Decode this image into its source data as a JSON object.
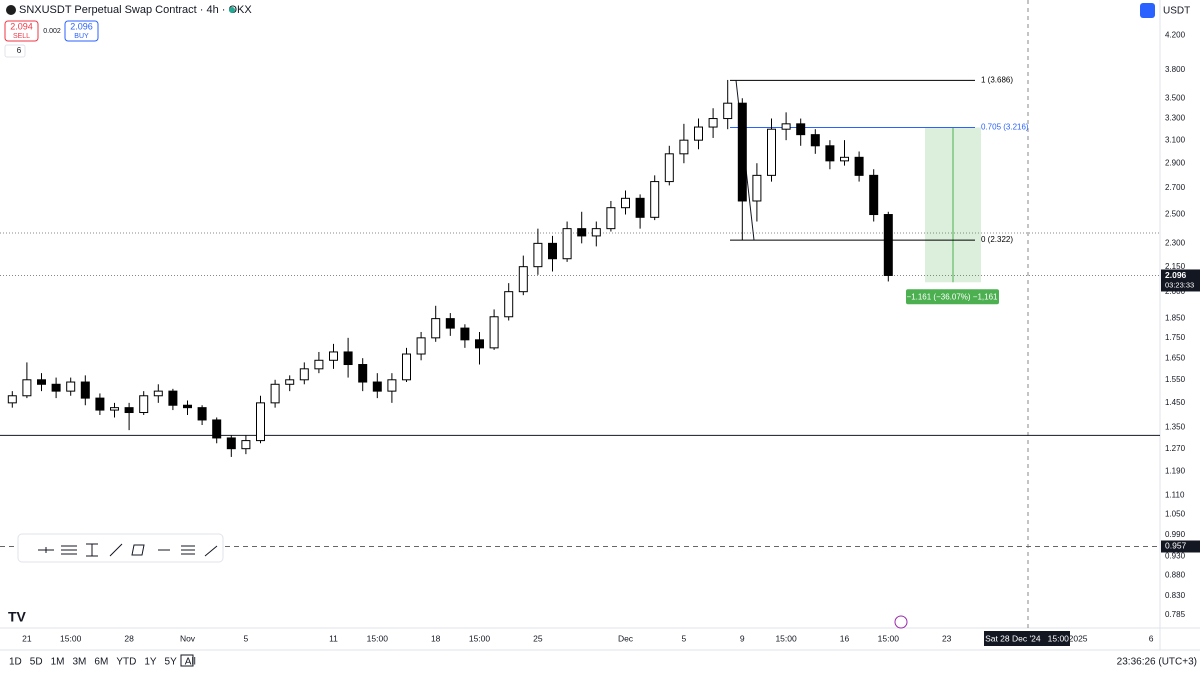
{
  "chart_data": {
    "type": "candlestick",
    "title": "SNXUSDT Perpetual Swap Contract · 4h · OKX",
    "categories": [
      null,
      "21",
      null,
      null,
      "15:00",
      null,
      null,
      null,
      "28",
      null,
      null,
      null,
      "Nov",
      null,
      null,
      null,
      "5",
      null,
      null,
      null,
      null,
      null,
      "11",
      null,
      null,
      "15:00",
      null,
      null,
      null,
      "18",
      null,
      null,
      "15:00",
      null,
      null,
      null,
      "25",
      null,
      null,
      null,
      null,
      null,
      "Dec",
      null,
      null,
      null,
      "5",
      null,
      null,
      null,
      "9",
      null,
      null,
      "15:00",
      null,
      null,
      null,
      "16",
      null,
      null,
      "15:00",
      null,
      null,
      null,
      "23",
      null,
      null,
      null,
      null,
      null,
      null,
      null,
      null,
      "2025",
      null,
      null,
      null,
      null,
      "6",
      null
    ],
    "open": [
      1.45,
      1.48,
      1.55,
      1.53,
      1.5,
      1.54,
      1.47,
      1.42,
      1.43,
      1.41,
      1.48,
      1.5,
      1.44,
      1.43,
      1.38,
      1.31,
      1.27,
      1.3,
      1.45,
      1.53,
      1.55,
      1.6,
      1.64,
      1.68,
      1.62,
      1.54,
      1.5,
      1.55,
      1.67,
      1.75,
      1.85,
      1.8,
      1.74,
      1.7,
      1.86,
      2.0,
      2.15,
      2.3,
      2.2,
      2.4,
      2.35,
      2.4,
      2.55,
      2.62,
      2.48,
      2.75,
      2.98,
      3.1,
      3.22,
      3.3,
      3.45,
      2.6,
      2.8,
      3.2,
      3.25,
      3.15,
      3.05,
      2.92,
      2.95,
      2.8,
      2.5,
      null,
      null,
      null,
      null,
      null,
      null,
      null,
      null,
      null,
      null,
      null,
      null,
      null,
      null,
      null,
      null,
      null,
      null,
      null
    ],
    "high": [
      1.5,
      1.63,
      1.58,
      1.56,
      1.56,
      1.57,
      1.49,
      1.45,
      1.45,
      1.5,
      1.53,
      1.51,
      1.46,
      1.44,
      1.39,
      1.32,
      1.32,
      1.48,
      1.55,
      1.57,
      1.63,
      1.68,
      1.72,
      1.75,
      1.65,
      1.58,
      1.58,
      1.7,
      1.78,
      1.92,
      1.88,
      1.82,
      1.78,
      1.9,
      2.05,
      2.22,
      2.4,
      2.35,
      2.45,
      2.52,
      2.45,
      2.6,
      2.68,
      2.65,
      2.8,
      3.05,
      3.25,
      3.3,
      3.4,
      3.69,
      3.5,
      2.9,
      3.3,
      3.36,
      3.3,
      3.2,
      3.1,
      3.1,
      3.0,
      2.85,
      2.52,
      null,
      null,
      null,
      null,
      null,
      null,
      null,
      null,
      null,
      null,
      null,
      null,
      null,
      null,
      null,
      null,
      null,
      null,
      null
    ],
    "low": [
      1.43,
      1.47,
      1.5,
      1.47,
      1.48,
      1.44,
      1.4,
      1.39,
      1.34,
      1.4,
      1.45,
      1.42,
      1.4,
      1.36,
      1.29,
      1.24,
      1.25,
      1.29,
      1.43,
      1.5,
      1.53,
      1.58,
      1.6,
      1.56,
      1.5,
      1.47,
      1.45,
      1.54,
      1.64,
      1.73,
      1.76,
      1.7,
      1.62,
      1.69,
      1.84,
      1.98,
      2.1,
      2.12,
      2.18,
      2.3,
      2.28,
      2.38,
      2.5,
      2.4,
      2.46,
      2.72,
      2.9,
      3.02,
      3.12,
      3.2,
      2.32,
      2.45,
      2.75,
      3.1,
      3.05,
      2.98,
      2.85,
      2.88,
      2.75,
      2.45,
      2.06,
      null,
      null,
      null,
      null,
      null,
      null,
      null,
      null,
      null,
      null,
      null,
      null,
      null,
      null,
      null,
      null,
      null,
      null,
      null
    ],
    "close": [
      1.48,
      1.55,
      1.53,
      1.5,
      1.54,
      1.47,
      1.42,
      1.43,
      1.41,
      1.48,
      1.5,
      1.44,
      1.43,
      1.38,
      1.31,
      1.27,
      1.3,
      1.45,
      1.53,
      1.55,
      1.6,
      1.64,
      1.68,
      1.62,
      1.54,
      1.5,
      1.55,
      1.67,
      1.75,
      1.85,
      1.8,
      1.74,
      1.7,
      1.86,
      2.0,
      2.15,
      2.3,
      2.2,
      2.4,
      2.35,
      2.4,
      2.55,
      2.62,
      2.48,
      2.75,
      2.98,
      3.1,
      3.22,
      3.3,
      3.45,
      2.6,
      2.8,
      3.2,
      3.25,
      3.15,
      3.05,
      2.92,
      2.95,
      2.8,
      2.5,
      2.096,
      null,
      null,
      null,
      null,
      null,
      null,
      null,
      null,
      null,
      null,
      null,
      null,
      null,
      null,
      null,
      null,
      null,
      null,
      null
    ],
    "up_color": "#ffffff",
    "down_color": "#000000",
    "log_scale": true,
    "grid": false,
    "ylim": [
      0.756,
      4.65
    ],
    "yticks": [
      {
        "value": 4.2,
        "label": "4.200"
      },
      {
        "value": 3.8,
        "label": "3.800"
      },
      {
        "value": 3.5,
        "label": "3.500"
      },
      {
        "value": 3.3,
        "label": "3.300"
      },
      {
        "value": 3.1,
        "label": "3.100"
      },
      {
        "value": 2.9,
        "label": "2.900"
      },
      {
        "value": 2.7,
        "label": "2.700"
      },
      {
        "value": 2.5,
        "label": "2.500"
      },
      {
        "value": 2.3,
        "label": "2.300"
      },
      {
        "value": 2.15,
        "label": "2.150"
      },
      {
        "value": 2.0,
        "label": "2.000"
      },
      {
        "value": 1.85,
        "label": "1.850"
      },
      {
        "value": 1.75,
        "label": "1.750"
      },
      {
        "value": 1.65,
        "label": "1.650"
      },
      {
        "value": 1.55,
        "label": "1.550"
      },
      {
        "value": 1.45,
        "label": "1.450"
      },
      {
        "value": 1.35,
        "label": "1.350"
      },
      {
        "value": 1.27,
        "label": "1.270"
      },
      {
        "value": 1.19,
        "label": "1.190"
      },
      {
        "value": 1.11,
        "label": "1.110"
      },
      {
        "value": 1.05,
        "label": "1.050"
      },
      {
        "value": 0.99,
        "label": "0.990"
      },
      {
        "value": 0.93,
        "label": "0.930"
      },
      {
        "value": 0.88,
        "label": "0.880"
      },
      {
        "value": 0.83,
        "label": "0.830"
      },
      {
        "value": 0.785,
        "label": "0.785"
      }
    ],
    "fib_levels": [
      {
        "value": 3.686,
        "label": "1 (3.686)",
        "color": "#000000"
      },
      {
        "value": 3.216,
        "label": "0.705 (3.216)",
        "color": "#2962ff"
      },
      {
        "value": 2.322,
        "label": "0 (2.322)",
        "color": "#000000"
      }
    ],
    "support_line": 1.32,
    "dotted_line": 2.37,
    "last_price": {
      "value": 2.096,
      "label": "2.096",
      "countdown": "03:23:33"
    },
    "alert_price": {
      "value": 0.957,
      "label": "0.957"
    },
    "measure": {
      "from": 3.216,
      "to": 2.055,
      "label": "−1.161 (−36.07%) −1,161"
    },
    "crosshair_label": "Sat 28 Dec '24   15:00"
  },
  "ui": {
    "sell_price": "2.094",
    "sell": "SELL",
    "spread": "0.002",
    "buy_price": "2.096",
    "buy": "BUY",
    "indicators": "6",
    "currency": "USDT",
    "timeframes": [
      "1D",
      "5D",
      "1M",
      "3M",
      "6M",
      "YTD",
      "1Y",
      "5Y",
      "All"
    ],
    "clock": "23:36:26 (UTC+3)"
  }
}
